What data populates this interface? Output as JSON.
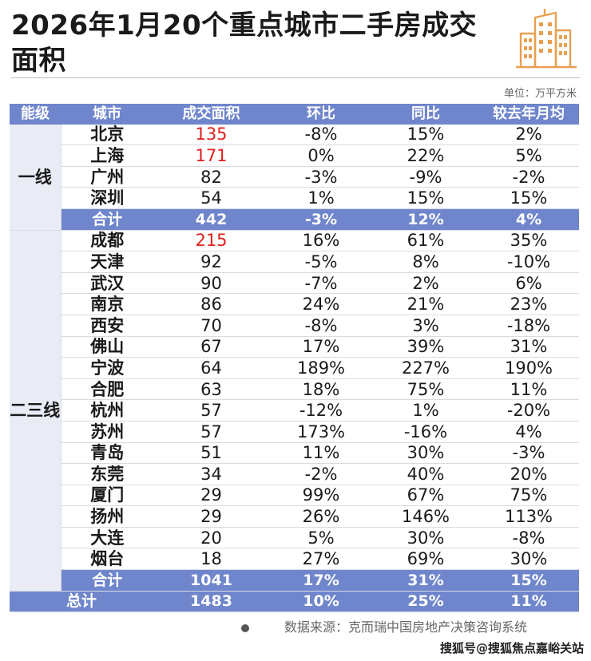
{
  "title": "2026年1月20个重点城市二手房成交面积",
  "unit": "单位：万平方米",
  "colors": {
    "header": "#6f86cc",
    "tier_bg": "#e9ebf5",
    "highlight": "#e02020",
    "icon": "#e8a050"
  },
  "icon": "building-icon",
  "headers": [
    "能级",
    "城市",
    "成交面积",
    "环比",
    "同比",
    "较去年月均"
  ],
  "tier1": {
    "label": "一线",
    "rows": [
      {
        "city": "北京",
        "area": "135",
        "mom": "-8%",
        "yoy": "15%",
        "avg": "2%",
        "highlight": true
      },
      {
        "city": "上海",
        "area": "171",
        "mom": "0%",
        "yoy": "22%",
        "avg": "5%",
        "highlight": true
      },
      {
        "city": "广州",
        "area": "82",
        "mom": "-3%",
        "yoy": "-9%",
        "avg": "-2%",
        "highlight": false
      },
      {
        "city": "深圳",
        "area": "54",
        "mom": "1%",
        "yoy": "15%",
        "avg": "15%",
        "highlight": false
      }
    ],
    "subtotal": {
      "label": "合计",
      "area": "442",
      "mom": "-3%",
      "yoy": "12%",
      "avg": "4%"
    }
  },
  "tier23": {
    "label": "二三线",
    "rows": [
      {
        "city": "成都",
        "area": "215",
        "mom": "16%",
        "yoy": "61%",
        "avg": "35%",
        "highlight": true
      },
      {
        "city": "天津",
        "area": "92",
        "mom": "-5%",
        "yoy": "8%",
        "avg": "-10%",
        "highlight": false
      },
      {
        "city": "武汉",
        "area": "90",
        "mom": "-7%",
        "yoy": "2%",
        "avg": "6%",
        "highlight": false
      },
      {
        "city": "南京",
        "area": "86",
        "mom": "24%",
        "yoy": "21%",
        "avg": "23%",
        "highlight": false
      },
      {
        "city": "西安",
        "area": "70",
        "mom": "-8%",
        "yoy": "3%",
        "avg": "-18%",
        "highlight": false
      },
      {
        "city": "佛山",
        "area": "67",
        "mom": "17%",
        "yoy": "39%",
        "avg": "31%",
        "highlight": false
      },
      {
        "city": "宁波",
        "area": "64",
        "mom": "189%",
        "yoy": "227%",
        "avg": "190%",
        "highlight": false
      },
      {
        "city": "合肥",
        "area": "63",
        "mom": "18%",
        "yoy": "75%",
        "avg": "11%",
        "highlight": false
      },
      {
        "city": "杭州",
        "area": "57",
        "mom": "-12%",
        "yoy": "1%",
        "avg": "-20%",
        "highlight": false
      },
      {
        "city": "苏州",
        "area": "57",
        "mom": "173%",
        "yoy": "-16%",
        "avg": "4%",
        "highlight": false
      },
      {
        "city": "青岛",
        "area": "51",
        "mom": "11%",
        "yoy": "30%",
        "avg": "-3%",
        "highlight": false
      },
      {
        "city": "东莞",
        "area": "34",
        "mom": "-2%",
        "yoy": "40%",
        "avg": "20%",
        "highlight": false
      },
      {
        "city": "厦门",
        "area": "29",
        "mom": "99%",
        "yoy": "67%",
        "avg": "75%",
        "highlight": false
      },
      {
        "city": "扬州",
        "area": "29",
        "mom": "26%",
        "yoy": "146%",
        "avg": "113%",
        "highlight": false
      },
      {
        "city": "大连",
        "area": "20",
        "mom": "5%",
        "yoy": "30%",
        "avg": "-8%",
        "highlight": false
      },
      {
        "city": "烟台",
        "area": "18",
        "mom": "27%",
        "yoy": "69%",
        "avg": "30%",
        "highlight": false
      }
    ],
    "subtotal": {
      "label": "合计",
      "area": "1041",
      "mom": "17%",
      "yoy": "31%",
      "avg": "15%"
    }
  },
  "total": {
    "label": "总计",
    "area": "1483",
    "mom": "10%",
    "yoy": "25%",
    "avg": "11%"
  },
  "source": "数据来源：克而瑞中国房地产决策咨询系统",
  "footer_mark": "搜狐号@搜狐焦点嘉峪关站"
}
